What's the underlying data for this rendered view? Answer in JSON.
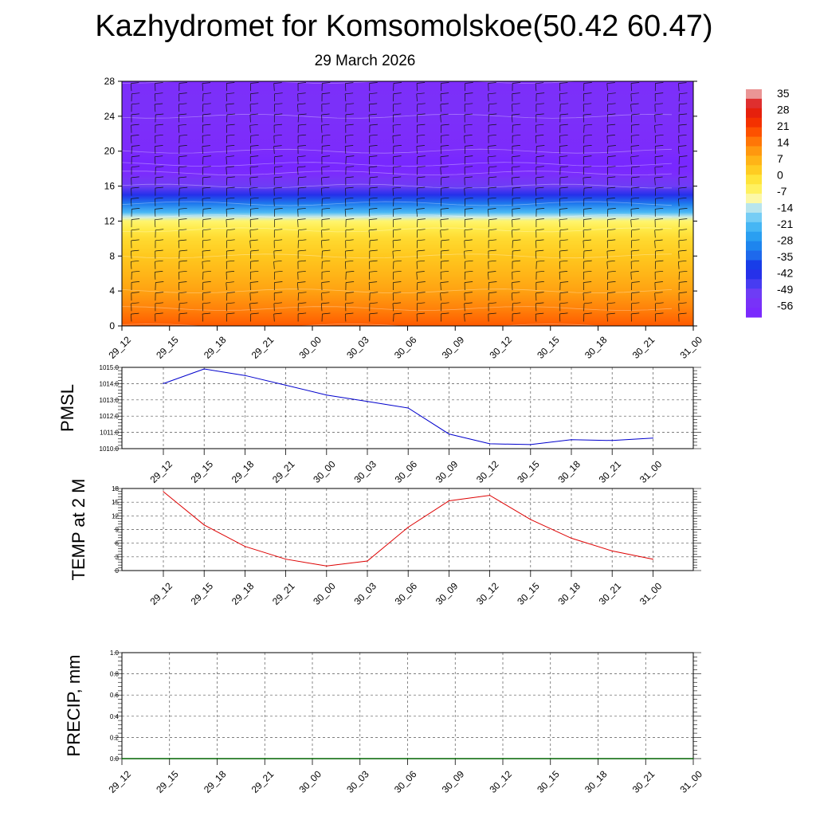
{
  "title": "Kazhydromet for Komsomolskoe(50.42 60.47)",
  "date": "29 March 2026",
  "colorbar": {
    "labels": [
      "35",
      "28",
      "21",
      "14",
      "7",
      "0",
      "-7",
      "-14",
      "-21",
      "-28",
      "-35",
      "-42",
      "-49",
      "-56"
    ]
  },
  "chart_data": [
    {
      "type": "heatmap",
      "name": "temperature-cross-section",
      "title": "",
      "xlabel": "",
      "ylabel": "",
      "x_ticks": [
        "29_12",
        "29_15",
        "29_18",
        "29_21",
        "30_00",
        "30_03",
        "30_06",
        "30_09",
        "30_12",
        "30_15",
        "30_18",
        "30_21",
        "31_00"
      ],
      "y_ticks": [
        "0",
        "4",
        "8",
        "12",
        "16",
        "20",
        "24",
        "28"
      ],
      "ylim": [
        0,
        28
      ],
      "levels": [
        0,
        1,
        2,
        3,
        4,
        6,
        8,
        10,
        11,
        12,
        12.5,
        13,
        14,
        15,
        16,
        17,
        17.5,
        18,
        18.5,
        19,
        20,
        22,
        24,
        26,
        28
      ],
      "temperatures": [
        16,
        14,
        12,
        10,
        8,
        5,
        2,
        -1,
        -4,
        -8,
        -14,
        -22,
        -32,
        -42,
        -50,
        -54,
        -58,
        -60,
        -62,
        -60,
        -57,
        -56,
        -55,
        -55,
        -56
      ],
      "wind_barbs": true
    },
    {
      "type": "line",
      "name": "pmsl",
      "ylabel": "PMSL",
      "categories": [
        "29_12",
        "29_15",
        "29_18",
        "29_21",
        "30_00",
        "30_03",
        "30_06",
        "30_09",
        "30_12",
        "30_15",
        "30_18",
        "30_21",
        "31_00"
      ],
      "values": [
        1014.0,
        1014.9,
        1014.5,
        1013.9,
        1013.3,
        1012.9,
        1012.5,
        1010.9,
        1010.3,
        1010.25,
        1010.55,
        1010.5,
        1010.65
      ],
      "y_ticks": [
        "1010.0",
        "1011.0",
        "1012.0",
        "1013.0",
        "1014.0",
        "1015.0"
      ],
      "ylim": [
        1010,
        1015
      ],
      "color": "#0000cc"
    },
    {
      "type": "line",
      "name": "temp-2m",
      "ylabel": "TEMP at 2 M",
      "categories": [
        "29_12",
        "29_15",
        "29_18",
        "29_21",
        "30_00",
        "30_03",
        "30_06",
        "30_09",
        "30_12",
        "30_15",
        "30_18",
        "30_21",
        "31_00"
      ],
      "values": [
        17.3,
        10.0,
        5.3,
        2.5,
        1.0,
        2.1,
        9.5,
        15.3,
        16.5,
        11.2,
        7.1,
        4.3,
        2.5
      ],
      "y_ticks": [
        "0",
        "3",
        "6",
        "9",
        "12",
        "15",
        "18"
      ],
      "ylim": [
        0,
        18
      ],
      "color": "#dd0000"
    },
    {
      "type": "line",
      "name": "precip",
      "ylabel": "PRECIP, mm",
      "categories": [
        "29_12",
        "29_15",
        "29_18",
        "29_21",
        "30_00",
        "30_03",
        "30_06",
        "30_09",
        "30_12",
        "30_15",
        "30_18",
        "30_21",
        "31_00"
      ],
      "values": [
        0,
        0,
        0,
        0,
        0,
        0,
        0,
        0,
        0,
        0,
        0,
        0,
        0
      ],
      "y_ticks": [
        "0.0",
        "0.2",
        "0.4",
        "0.6",
        "0.8",
        "1.0"
      ],
      "ylim": [
        0,
        1
      ],
      "color": "#006400"
    }
  ]
}
